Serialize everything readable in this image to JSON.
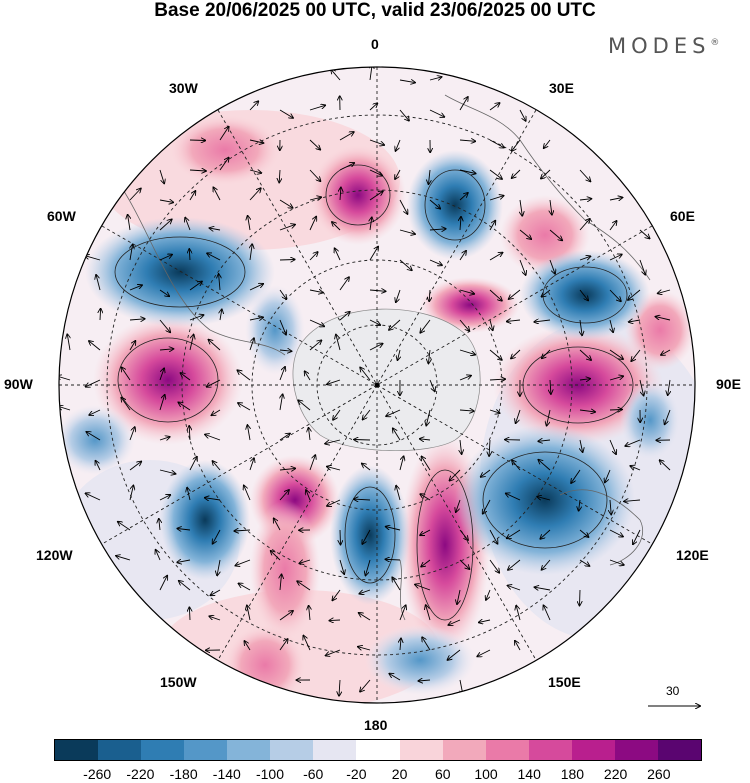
{
  "title": "Base 20/06/2025 00 UTC, valid 23/06/2025 00 UTC",
  "brand": {
    "name": "MODES",
    "mark": "®"
  },
  "map": {
    "projection": "south polar stereographic",
    "longitude_labels": {
      "top": "0",
      "bottom": "180",
      "left": "90W",
      "right": "90E",
      "upper_left_30": "30W",
      "upper_right_30": "30E",
      "upper_left_60": "60W",
      "upper_right_60": "60E",
      "lower_left_120": "120W",
      "lower_right_120": "120E",
      "lower_left_150": "150W",
      "lower_right_150": "150E"
    },
    "reference_vector": "30"
  },
  "colorbar": {
    "colors": [
      "#0a3a5a",
      "#1a5f8f",
      "#2f7db3",
      "#5497c8",
      "#84b4d9",
      "#b6cde6",
      "#e6e6f2",
      "#ffffff",
      "#f9d4da",
      "#f2a9bb",
      "#ea7aa8",
      "#d64a9c",
      "#b91f8e",
      "#8c0a82",
      "#5a0570"
    ],
    "tick_labels": [
      "-260",
      "-220",
      "-180",
      "-140",
      "-100",
      "-60",
      "-20",
      "20",
      "60",
      "100",
      "140",
      "180",
      "220",
      "260"
    ]
  }
}
